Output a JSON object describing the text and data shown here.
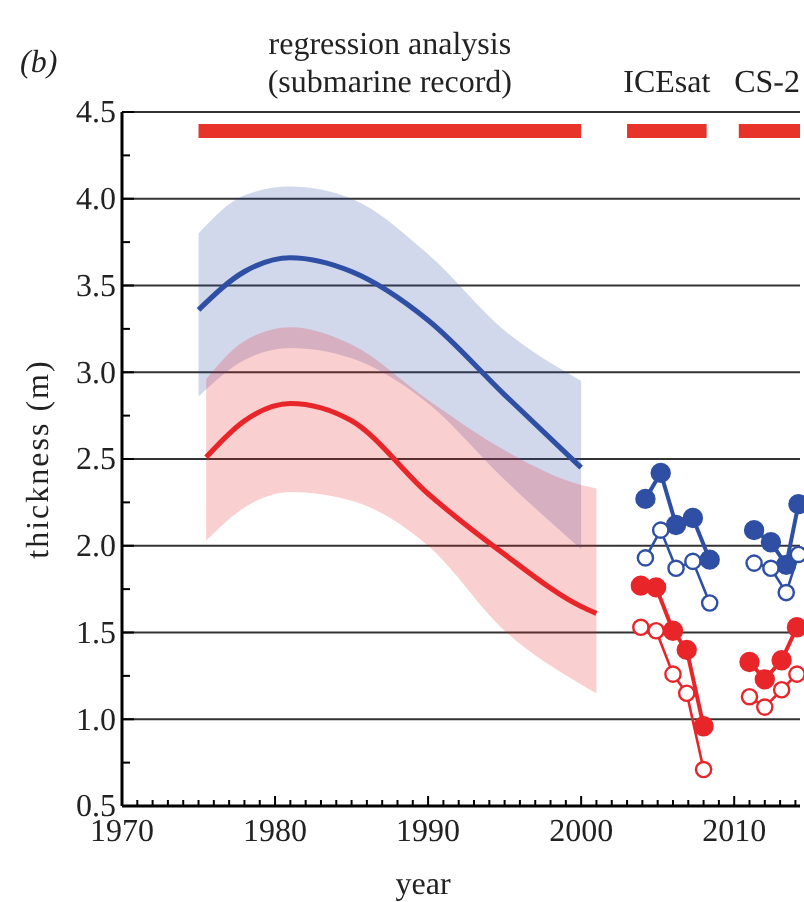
{
  "chart_data": {
    "type": "line",
    "xlabel": "year",
    "ylabel": "thickness (m)",
    "annotations": [
      "(b)"
    ],
    "xlim": [
      1970,
      2014.3
    ],
    "ylim": [
      0.5,
      4.5
    ],
    "xticks": [
      1970,
      {
        "value": 1971,
        "label": null
      },
      {
        "value": 1972,
        "label": null
      },
      {
        "value": 1973,
        "label": null
      },
      {
        "value": 1974,
        "label": null
      },
      {
        "value": 1975,
        "label": null
      },
      {
        "value": 1976,
        "label": null
      },
      {
        "value": 1977,
        "label": null
      },
      {
        "value": 1978,
        "label": null
      },
      {
        "value": 1979,
        "label": null
      },
      1980,
      {
        "value": 1981,
        "label": null
      },
      {
        "value": 1982,
        "label": null
      },
      {
        "value": 1983,
        "label": null
      },
      {
        "value": 1984,
        "label": null
      },
      {
        "value": 1985,
        "label": null
      },
      {
        "value": 1986,
        "label": null
      },
      {
        "value": 1987,
        "label": null
      },
      {
        "value": 1988,
        "label": null
      },
      {
        "value": 1989,
        "label": null
      },
      1990,
      {
        "value": 1991,
        "label": null
      },
      {
        "value": 1992,
        "label": null
      },
      {
        "value": 1993,
        "label": null
      },
      {
        "value": 1994,
        "label": null
      },
      {
        "value": 1995,
        "label": null
      },
      {
        "value": 1996,
        "label": null
      },
      {
        "value": 1997,
        "label": null
      },
      {
        "value": 1998,
        "label": null
      },
      {
        "value": 1999,
        "label": null
      },
      2000,
      {
        "value": 2001,
        "label": null
      },
      {
        "value": 2002,
        "label": null
      },
      {
        "value": 2003,
        "label": null
      },
      {
        "value": 2004,
        "label": null
      },
      {
        "value": 2005,
        "label": null
      },
      {
        "value": 2006,
        "label": null
      },
      {
        "value": 2007,
        "label": null
      },
      {
        "value": 2008,
        "label": null
      },
      {
        "value": 2009,
        "label": null
      },
      2010,
      {
        "value": 2011,
        "label": null
      },
      {
        "value": 2012,
        "label": null
      },
      {
        "value": 2013,
        "label": null
      },
      {
        "value": 2014,
        "label": null
      }
    ],
    "yticks": [
      0.5,
      {
        "value": 0.75,
        "label": null
      },
      {
        "value": 1,
        "label": "1.0"
      },
      {
        "value": 1.25,
        "label": null
      },
      1.5,
      {
        "value": 1.75,
        "label": null
      },
      {
        "value": 2,
        "label": "2.0"
      },
      {
        "value": 2.25,
        "label": null
      },
      2.5,
      {
        "value": 2.75,
        "label": null
      },
      {
        "value": 3,
        "label": "3.0"
      },
      {
        "value": 3.25,
        "label": null
      },
      3.5,
      {
        "value": 3.75,
        "label": null
      },
      {
        "value": 4,
        "label": "4.0"
      },
      {
        "value": 4.25,
        "label": null
      },
      4.5
    ],
    "grid": "y",
    "series": [
      {
        "name": "regression analysis\n(submarine record)",
        "color": "#e8332a",
        "marker": "none",
        "x": [
          1975,
          2000
        ],
        "values": [
          4.39,
          4.39
        ]
      },
      {
        "name": "ICEsat",
        "color": "#e8332a",
        "marker": "none",
        "x": [
          2003,
          2008.2
        ],
        "values": [
          4.39,
          4.39
        ]
      },
      {
        "name": "CS-2",
        "color": "#e8332a",
        "marker": "none",
        "x": [
          2010.3,
          2014.3
        ],
        "values": [
          4.39,
          4.39
        ]
      },
      {
        "color": "#2e4fa3",
        "marker": "none",
        "x": [
          1975,
          1978,
          1981,
          1985,
          1990,
          1995,
          2000
        ],
        "values": [
          3.36,
          3.58,
          3.66,
          3.58,
          3.3,
          2.87,
          2.45
        ],
        "lower": [
          2.86,
          3.07,
          3.14,
          3.08,
          2.82,
          2.38,
          1.98
        ],
        "upper": [
          3.8,
          4.02,
          4.07,
          4.0,
          3.68,
          3.24,
          2.95
        ]
      },
      {
        "color": "#e8262a",
        "marker": "none",
        "x": [
          1975.5,
          1978,
          1981,
          1985,
          1990,
          1995,
          2000,
          2001
        ],
        "values": [
          2.51,
          2.72,
          2.82,
          2.72,
          2.3,
          1.95,
          1.65,
          1.61
        ],
        "lower": [
          2.03,
          2.22,
          2.31,
          2.26,
          2.0,
          1.51,
          1.2,
          1.15
        ],
        "upper": [
          2.96,
          3.18,
          3.26,
          3.16,
          2.84,
          2.55,
          2.35,
          2.33
        ]
      },
      {
        "color": "#2e4fa3",
        "marker": "circle",
        "x": [
          2004.2,
          2005.2,
          2006.2,
          2007.3,
          2008.4
        ],
        "values": [
          2.27,
          2.42,
          2.12,
          2.16,
          1.92
        ]
      },
      {
        "color": "#2e4fa3",
        "marker": "circle-open",
        "x": [
          2004.2,
          2005.2,
          2006.2,
          2007.3,
          2008.4
        ],
        "values": [
          1.93,
          2.09,
          1.87,
          1.91,
          1.67
        ]
      },
      {
        "color": "#e8262a",
        "marker": "circle",
        "x": [
          2003.9,
          2004.9,
          2006.0,
          2006.9,
          2008.0
        ],
        "values": [
          1.77,
          1.76,
          1.51,
          1.4,
          0.96
        ]
      },
      {
        "color": "#e8262a",
        "marker": "circle-open",
        "x": [
          2003.9,
          2004.9,
          2006.0,
          2006.9,
          2008.0
        ],
        "values": [
          1.53,
          1.51,
          1.26,
          1.15,
          0.71
        ]
      },
      {
        "color": "#2e4fa3",
        "marker": "circle",
        "x": [
          2011.3,
          2012.4,
          2013.4,
          2014.2
        ],
        "values": [
          2.09,
          2.02,
          1.89,
          2.24
        ]
      },
      {
        "color": "#2e4fa3",
        "marker": "circle-open",
        "x": [
          2011.3,
          2012.4,
          2013.4,
          2014.2
        ],
        "values": [
          1.9,
          1.87,
          1.73,
          1.95
        ]
      },
      {
        "color": "#e8262a",
        "marker": "circle",
        "x": [
          2011.0,
          2012.0,
          2013.1,
          2014.1
        ],
        "values": [
          1.33,
          1.23,
          1.34,
          1.53
        ]
      },
      {
        "color": "#e8262a",
        "marker": "circle-open",
        "x": [
          2011.0,
          2012.0,
          2013.1,
          2014.1
        ],
        "values": [
          1.13,
          1.07,
          1.17,
          1.26
        ]
      }
    ]
  }
}
